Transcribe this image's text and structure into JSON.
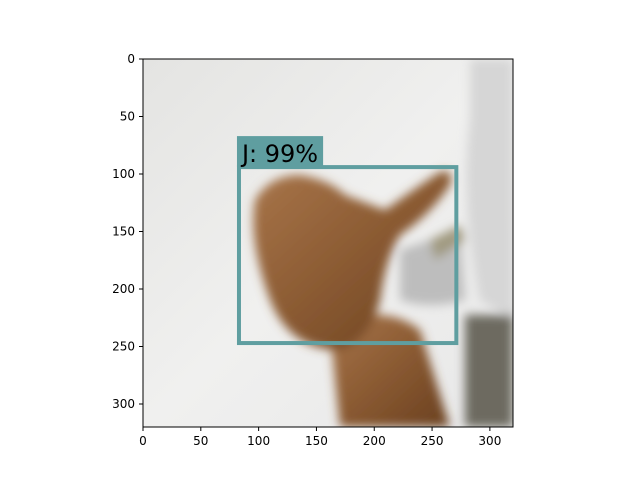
{
  "chart_data": {
    "type": "image",
    "xlim": [
      0,
      320
    ],
    "ylim": [
      320,
      0
    ],
    "xticks": [
      0,
      50,
      100,
      150,
      200,
      250,
      300
    ],
    "yticks": [
      0,
      50,
      100,
      150,
      200,
      250,
      300
    ],
    "detections": [
      {
        "label": "J: 99%",
        "xmin": 83,
        "ymin": 94,
        "xmax": 271,
        "ymax": 247,
        "color": "#5f9ea0"
      }
    ]
  }
}
